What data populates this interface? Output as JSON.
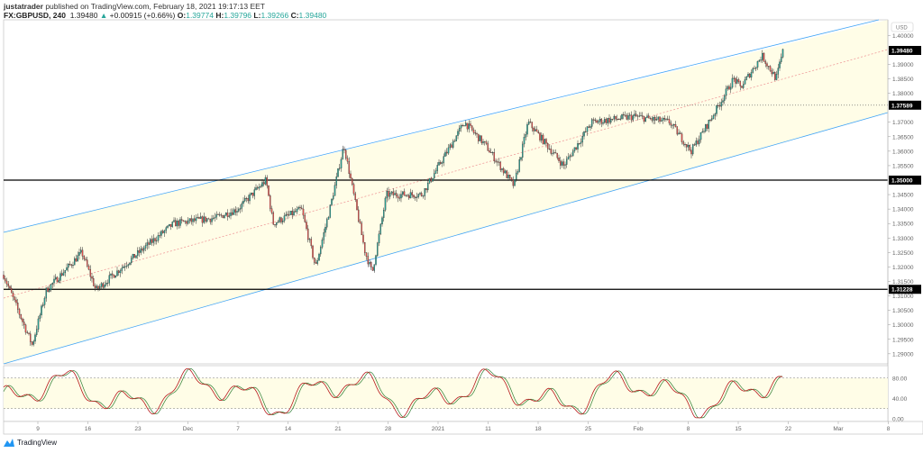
{
  "header": {
    "author": "justatrader",
    "published_text": "published on TradingView.com, February 18, 2021 19:17:13 EET",
    "symbol": "FX:GBPUSD, 240",
    "last": "1.39480",
    "change": "+0.00915 (+0.66%)",
    "open_label": "O:",
    "open": "1.39774",
    "high_label": "H:",
    "high": "1.39796",
    "low_label": "L:",
    "low": "1.39266",
    "close_label": "C:",
    "close": "1.39480"
  },
  "price_axis": {
    "currency": "USD",
    "ticks": [
      "1.40000",
      "1.39000",
      "1.38500",
      "1.38000",
      "1.37000",
      "1.36500",
      "1.36000",
      "1.35500",
      "1.34500",
      "1.34000",
      "1.33500",
      "1.33000",
      "1.32500",
      "1.32000",
      "1.31500",
      "1.31000",
      "1.30500",
      "1.30000",
      "1.29500",
      "1.29000"
    ],
    "markers": [
      {
        "label": "1.39480",
        "value": 1.3948
      },
      {
        "label": "1.37589",
        "value": 1.37589
      },
      {
        "label": "1.35000",
        "value": 1.35
      },
      {
        "label": "1.31228",
        "value": 1.31228
      }
    ]
  },
  "oscillator_axis": {
    "ticks": [
      "80.00",
      "40.00",
      "0.00"
    ]
  },
  "time_axis": {
    "ticks": [
      "9",
      "16",
      "23",
      "Dec",
      "7",
      "14",
      "21",
      "28",
      "2021",
      "11",
      "18",
      "25",
      "Feb",
      "8",
      "15",
      "22",
      "Mar",
      "8"
    ]
  },
  "footer": {
    "brand": "TradingView"
  },
  "colors": {
    "up": "#26a69a",
    "down": "#ef5350",
    "candle": "#2b2b2b",
    "channel": "#42a5f5",
    "channel_fill": "#fffde7",
    "midline": "#ef9a9a",
    "stoch_k": "#b71c1c",
    "stoch_d": "#2e7d32"
  },
  "chart_data": {
    "type": "candlestick",
    "symbol": "GBPUSD",
    "timeframe": "240",
    "approx_path": [
      [
        "Nov 2",
        1.305
      ],
      [
        "Nov 4",
        1.293
      ],
      [
        "Nov 6",
        1.312
      ],
      [
        "Nov 11",
        1.325
      ],
      [
        "Nov 13",
        1.312
      ],
      [
        "Nov 20",
        1.327
      ],
      [
        "Nov 24",
        1.335
      ],
      [
        "Nov 30",
        1.337
      ],
      [
        "Dec 3",
        1.34
      ],
      [
        "Dec 7",
        1.35
      ],
      [
        "Dec 8",
        1.335
      ],
      [
        "Dec 12",
        1.34
      ],
      [
        "Dec 14",
        1.32
      ],
      [
        "Dec 16",
        1.34
      ],
      [
        "Dec 18",
        1.362
      ],
      [
        "Dec 21",
        1.325
      ],
      [
        "Dec 22",
        1.318
      ],
      [
        "Dec 24",
        1.345
      ],
      [
        "Dec 29",
        1.345
      ],
      [
        "Jan 4",
        1.37
      ],
      [
        "Jan 7",
        1.362
      ],
      [
        "Jan 11",
        1.348
      ],
      [
        "Jan 13",
        1.37
      ],
      [
        "Jan 18",
        1.355
      ],
      [
        "Jan 22",
        1.37
      ],
      [
        "Jan 28",
        1.372
      ],
      [
        "Feb 2",
        1.37
      ],
      [
        "Feb 5",
        1.36
      ],
      [
        "Feb 8",
        1.372
      ],
      [
        "Feb 11",
        1.385
      ],
      [
        "Feb 12",
        1.382
      ],
      [
        "Feb 15",
        1.393
      ],
      [
        "Feb 17",
        1.385
      ],
      [
        "Feb 18",
        1.3948
      ]
    ],
    "horizontal_levels": [
      1.35,
      1.31228
    ],
    "oscillator": {
      "levels": [
        20,
        80
      ],
      "range": [
        0,
        100
      ]
    }
  }
}
